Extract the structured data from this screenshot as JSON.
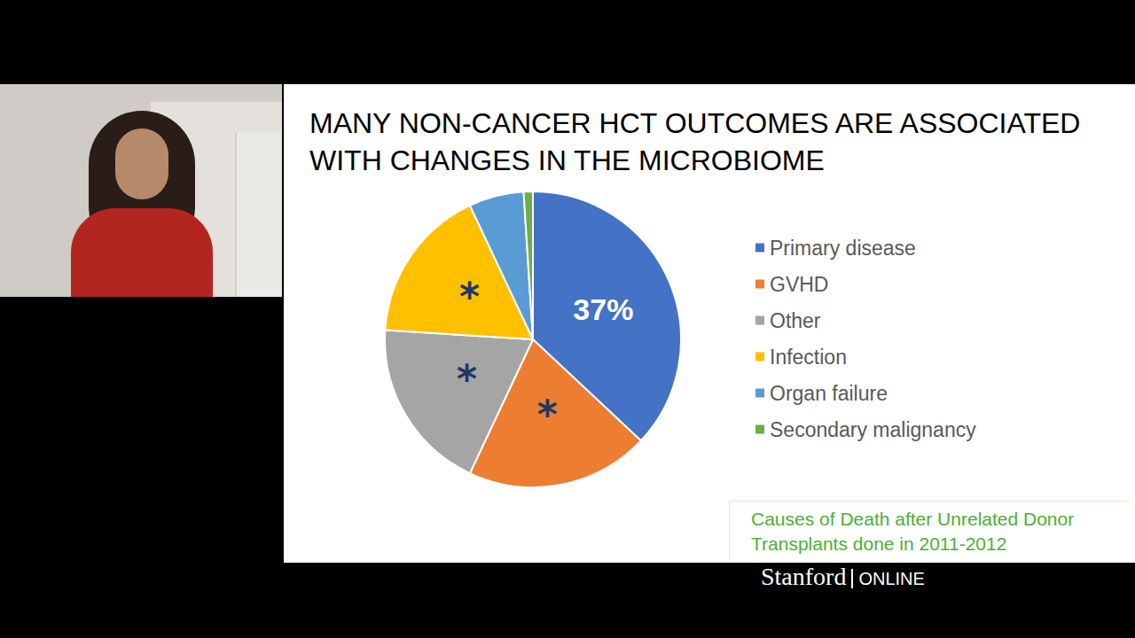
{
  "chart_data": {
    "type": "pie",
    "title": "MANY NON-CANCER HCT OUTCOMES ARE ASSOCIATED WITH CHANGES IN THE MICROBIOME",
    "categories": [
      "Primary disease",
      "GVHD",
      "Other",
      "Infection",
      "Organ failure",
      "Secondary malignancy"
    ],
    "values": [
      37,
      20,
      19,
      17,
      6,
      1
    ],
    "colors": [
      "#4472c4",
      "#ed7d31",
      "#a5a5a5",
      "#ffc000",
      "#5b9bd5",
      "#70ad47"
    ],
    "value_labels": [
      "37%",
      null,
      null,
      null,
      null,
      null
    ],
    "marks": [
      null,
      "*",
      "*",
      "*",
      null,
      null
    ],
    "legend": "right",
    "annotation": "Causes of Death after Unrelated Donor Transplants done in 2011-2012"
  },
  "watermark": [
    "Stanford",
    "ONLINE"
  ]
}
